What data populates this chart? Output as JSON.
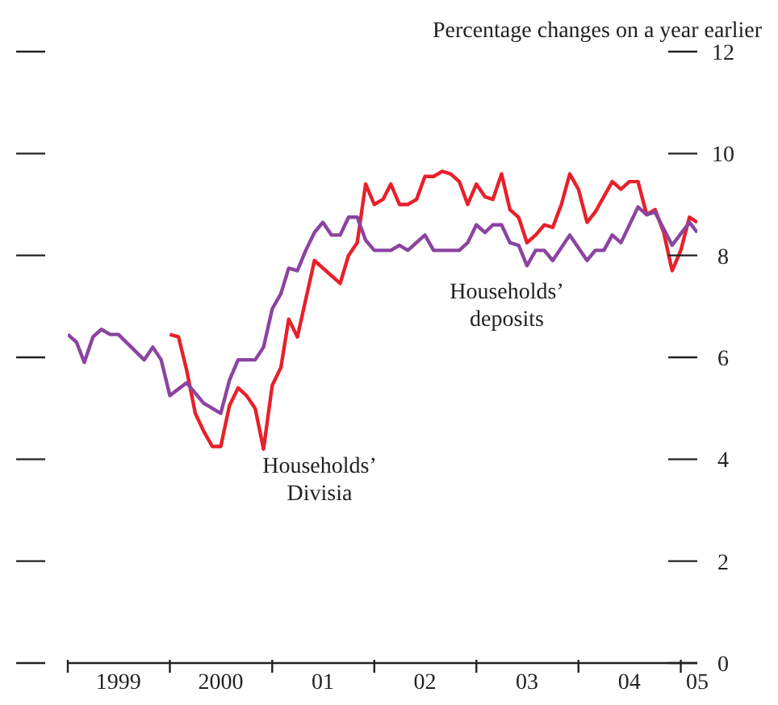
{
  "chart_data": {
    "type": "line",
    "ylabel": "Percentage changes on a year earlier",
    "xlim": [
      "1999-01",
      "2005-03"
    ],
    "xticks": [
      {
        "value": "1999-01",
        "label": null
      },
      {
        "value": "1999-07",
        "label": "1999"
      },
      {
        "value": "2000-01",
        "label": null
      },
      {
        "value": "2000-07",
        "label": "2000"
      },
      {
        "value": "2001-01",
        "label": null
      },
      {
        "value": "2001-07",
        "label": "01"
      },
      {
        "value": "2002-01",
        "label": null
      },
      {
        "value": "2002-07",
        "label": "02"
      },
      {
        "value": "2003-01",
        "label": null
      },
      {
        "value": "2003-07",
        "label": "03"
      },
      {
        "value": "2004-01",
        "label": null
      },
      {
        "value": "2004-07",
        "label": "04"
      },
      {
        "value": "2005-01",
        "label": null
      },
      {
        "value": "2005-03",
        "label": "05"
      }
    ],
    "ylim": [
      0,
      12
    ],
    "yticks": [
      0,
      2,
      4,
      6,
      8,
      10,
      12
    ],
    "marker": "none",
    "line_style": "solid",
    "series": [
      {
        "name": "Households’ Divisia",
        "color": "#e8202a",
        "x": [
          "2000-01",
          "2000-02",
          "2000-03",
          "2000-04",
          "2000-05",
          "2000-06",
          "2000-07",
          "2000-08",
          "2000-09",
          "2000-10",
          "2000-11",
          "2000-12",
          "2001-01",
          "2001-02",
          "2001-03",
          "2001-04",
          "2001-06",
          "2001-09",
          "2001-10",
          "2001-11",
          "2001-12",
          "2002-01",
          "2002-02",
          "2002-03",
          "2002-04",
          "2002-05",
          "2002-06",
          "2002-07",
          "2002-08",
          "2002-09",
          "2002-10",
          "2002-11",
          "2002-12",
          "2003-01",
          "2003-02",
          "2003-03",
          "2003-04",
          "2003-05",
          "2003-06",
          "2003-07",
          "2003-08",
          "2003-09",
          "2003-10",
          "2003-11",
          "2003-12",
          "2004-01",
          "2004-02",
          "2004-03",
          "2004-05",
          "2004-06",
          "2004-07",
          "2004-08",
          "2004-09",
          "2004-10",
          "2004-11",
          "2004-12",
          "2005-01",
          "2005-02",
          "2005-03"
        ],
        "values": [
          6.45,
          6.4,
          5.75,
          4.9,
          4.55,
          4.25,
          4.25,
          5.05,
          5.4,
          5.25,
          5.0,
          4.2,
          5.45,
          5.8,
          6.75,
          6.4,
          7.9,
          7.45,
          8.0,
          8.25,
          9.4,
          9.0,
          9.1,
          9.4,
          9.0,
          9.0,
          9.1,
          9.55,
          9.55,
          9.65,
          9.6,
          9.45,
          9.0,
          9.4,
          9.15,
          9.1,
          9.6,
          8.9,
          8.75,
          8.25,
          8.4,
          8.6,
          8.55,
          9.0,
          9.6,
          9.3,
          8.65,
          8.85,
          9.45,
          9.3,
          9.45,
          9.45,
          8.8,
          8.9,
          8.45,
          7.7,
          8.1,
          8.75,
          8.65
        ]
      },
      {
        "name": "Households’ deposits",
        "color": "#8b44a0",
        "x": [
          "1999-01",
          "1999-02",
          "1999-03",
          "1999-04",
          "1999-05",
          "1999-06",
          "1999-07",
          "1999-10",
          "1999-11",
          "1999-12",
          "2000-01",
          "2000-03",
          "2000-05",
          "2000-07",
          "2000-08",
          "2000-09",
          "2000-11",
          "2000-12",
          "2001-01",
          "2001-02",
          "2001-03",
          "2001-04",
          "2001-05",
          "2001-06",
          "2001-07",
          "2001-08",
          "2001-09",
          "2001-10",
          "2001-11",
          "2001-12",
          "2002-01",
          "2002-03",
          "2002-04",
          "2002-05",
          "2002-07",
          "2002-08",
          "2002-11",
          "2002-12",
          "2003-01",
          "2003-02",
          "2003-03",
          "2003-04",
          "2003-05",
          "2003-06",
          "2003-07",
          "2003-08",
          "2003-09",
          "2003-10",
          "2003-12",
          "2004-02",
          "2004-03",
          "2004-04",
          "2004-05",
          "2004-06",
          "2004-08",
          "2004-09",
          "2004-10",
          "2004-12",
          "2005-02",
          "2005-03"
        ],
        "values": [
          6.45,
          6.3,
          5.9,
          6.4,
          6.55,
          6.45,
          6.45,
          5.95,
          6.2,
          5.95,
          5.25,
          5.5,
          5.1,
          4.9,
          5.55,
          5.95,
          5.95,
          6.2,
          6.95,
          7.25,
          7.75,
          7.7,
          8.1,
          8.45,
          8.65,
          8.4,
          8.4,
          8.75,
          8.75,
          8.3,
          8.1,
          8.1,
          8.2,
          8.1,
          8.4,
          8.1,
          8.1,
          8.25,
          8.6,
          8.45,
          8.6,
          8.6,
          8.25,
          8.2,
          7.8,
          8.1,
          8.1,
          7.9,
          8.4,
          7.9,
          8.1,
          8.1,
          8.4,
          8.25,
          8.95,
          8.8,
          8.85,
          8.2,
          8.65,
          8.45
        ]
      }
    ]
  }
}
